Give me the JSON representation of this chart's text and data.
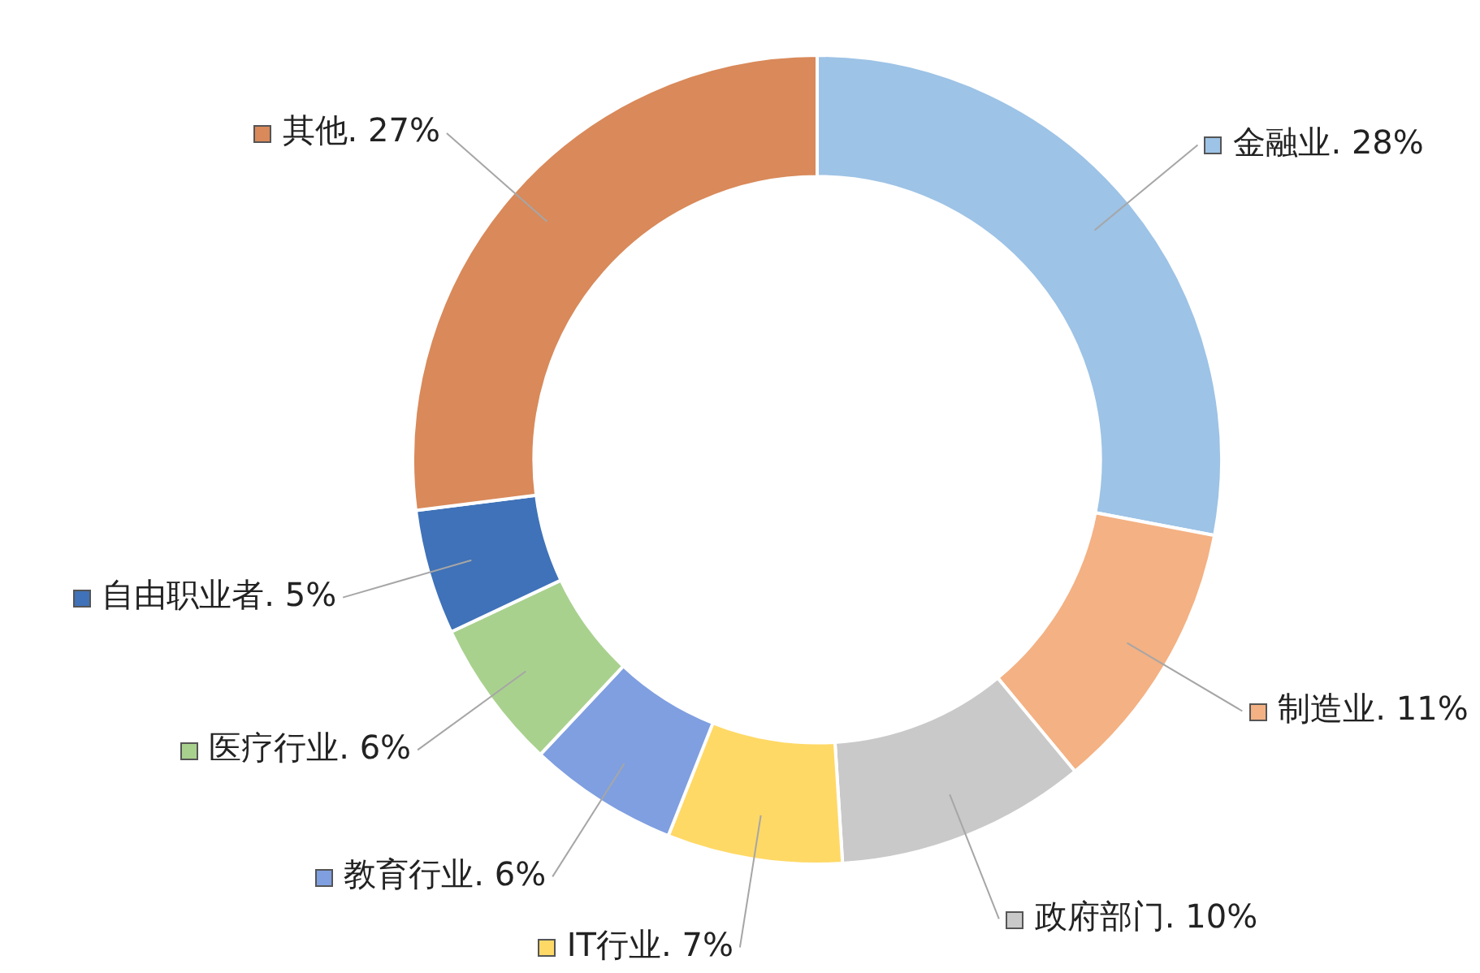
{
  "chart_data": {
    "type": "donut",
    "categories": [
      "金融业.",
      "制造业.",
      "政府部门.",
      "IT行业.",
      "教育行业.",
      "医疗行业.",
      "自由职业者.",
      "其他."
    ],
    "values": [
      28,
      11,
      10,
      7,
      6,
      6,
      5,
      27
    ],
    "colors": [
      "#9dc3e6",
      "#f4b183",
      "#c9c9c9",
      "#ffd966",
      "#7f9fe0",
      "#a9d18e",
      "#3f72b8",
      "#d9895a"
    ],
    "value_labels": [
      "28%",
      "11%",
      "10%",
      "7%",
      "6%",
      "6%",
      "5%",
      "27%"
    ],
    "legend": true
  }
}
